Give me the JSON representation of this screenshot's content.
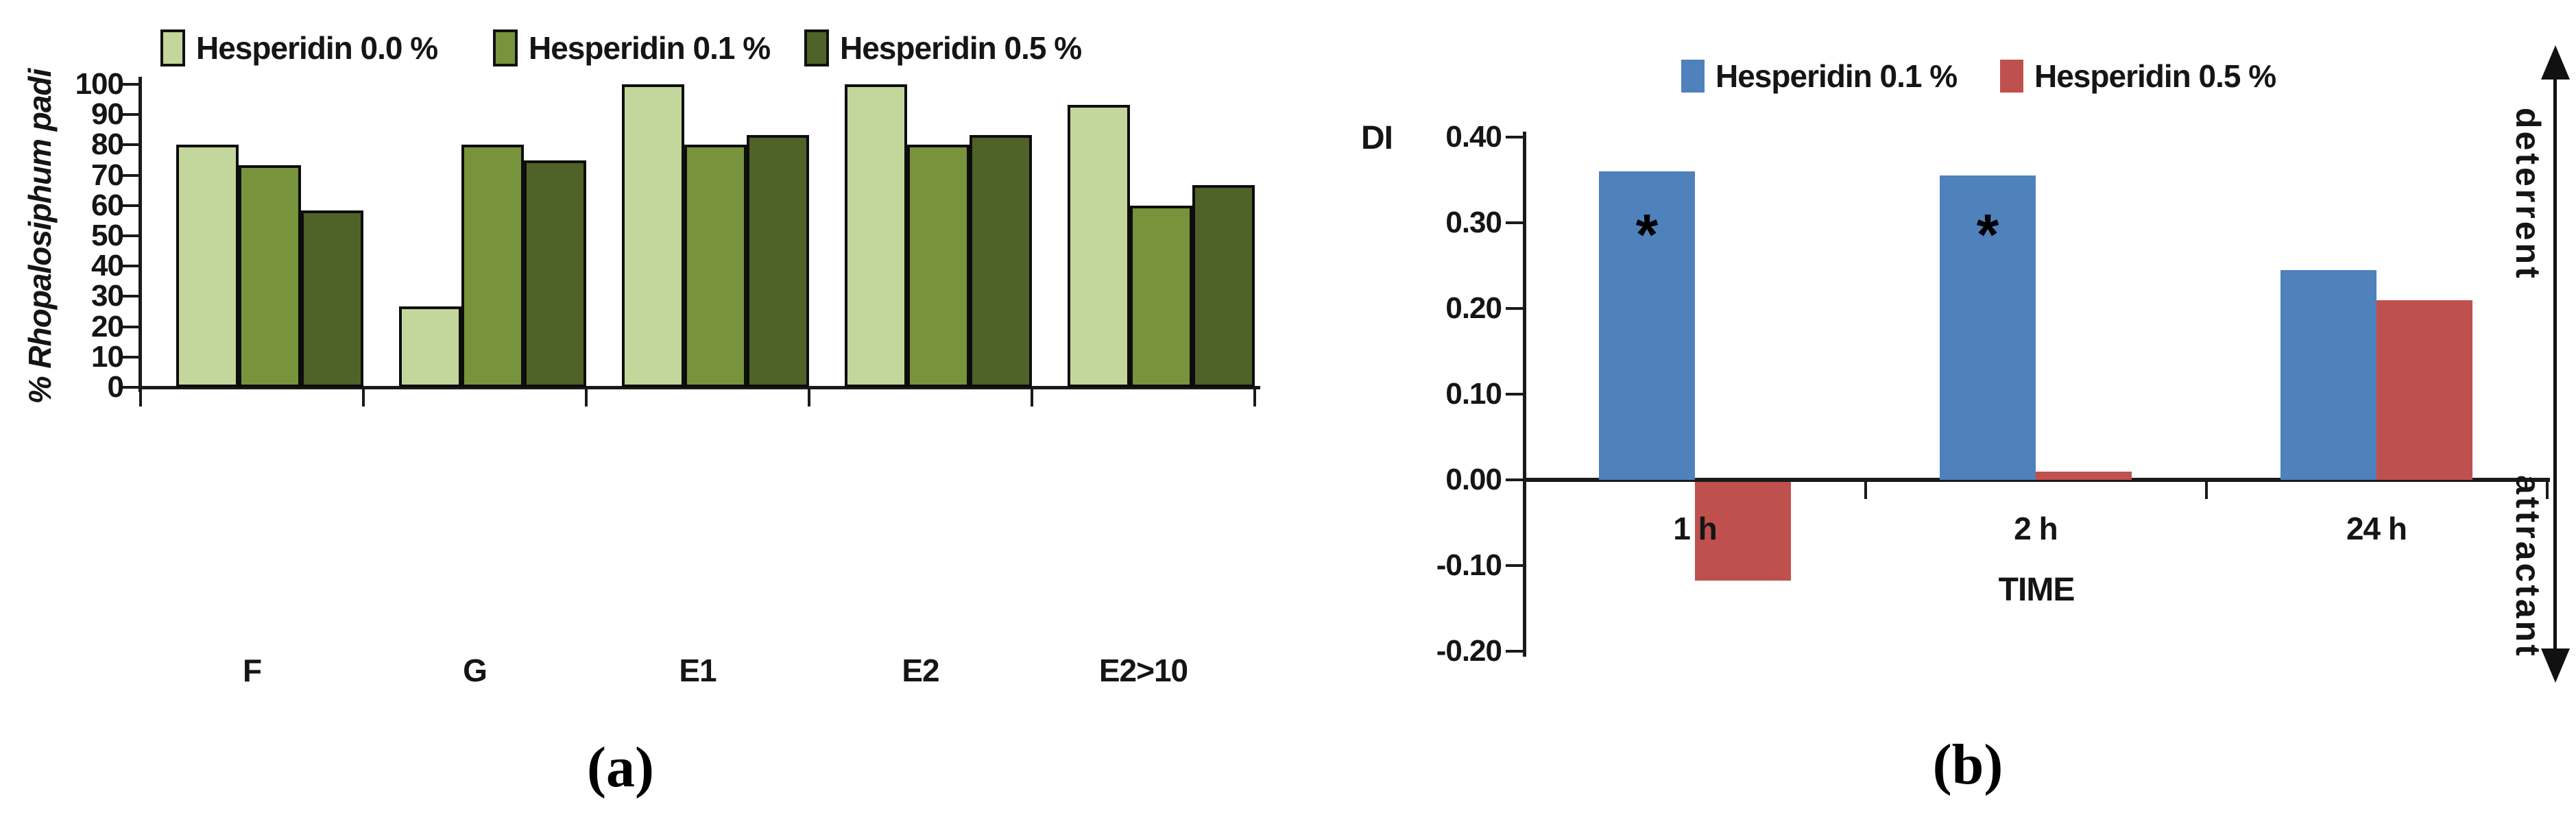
{
  "figure": {
    "background": "#ffffff",
    "axis_color": "#1a1a1a"
  },
  "chart_data": [
    {
      "id": "a",
      "type": "bar",
      "title": "",
      "ylabel": "% Rhopalosiphum padi",
      "xlabel": "",
      "ylim": [
        0,
        100
      ],
      "ytick_step": 10,
      "grid": false,
      "legend_position": "top",
      "categories": [
        "F",
        "G",
        "E1",
        "E2",
        "E2>10"
      ],
      "series": [
        {
          "name": "Hesperidin 0.0 %",
          "color": "#C3D69B",
          "values": [
            80,
            26.7,
            100,
            100,
            93.3
          ]
        },
        {
          "name": "Hesperidin 0.1 %",
          "color": "#77933C",
          "values": [
            73.3,
            80,
            80,
            80,
            60
          ]
        },
        {
          "name": "Hesperidin 0.5 %",
          "color": "#4F6228",
          "values": [
            58.3,
            75,
            83.3,
            83.3,
            66.7
          ]
        }
      ],
      "caption": "(a)"
    },
    {
      "id": "b",
      "type": "bar",
      "title": "",
      "ylabel": "DI",
      "xlabel": "TIME",
      "ylim": [
        -0.2,
        0.4
      ],
      "ytick_step": 0.1,
      "ytick_labels": [
        "0.40",
        "0.30",
        "0.20",
        "0.10",
        "0.00",
        "-0.10",
        "-0.20"
      ],
      "grid": false,
      "legend_position": "top",
      "categories": [
        "1 h",
        "2 h",
        "24 h"
      ],
      "series": [
        {
          "name": "Hesperidin 0.1 %",
          "color": "#4F81BD",
          "values": [
            0.36,
            0.355,
            0.245
          ]
        },
        {
          "name": "Hesperidin 0.5 %",
          "color": "#C0504D",
          "values": [
            -0.115,
            0.01,
            0.21
          ]
        }
      ],
      "annotations": [
        {
          "text": "*",
          "series": 0,
          "category": 0
        },
        {
          "text": "*",
          "series": 0,
          "category": 1
        }
      ],
      "right_axis_labels": {
        "top": "deterrent",
        "bottom": "attractant"
      },
      "caption": "(b)"
    }
  ]
}
